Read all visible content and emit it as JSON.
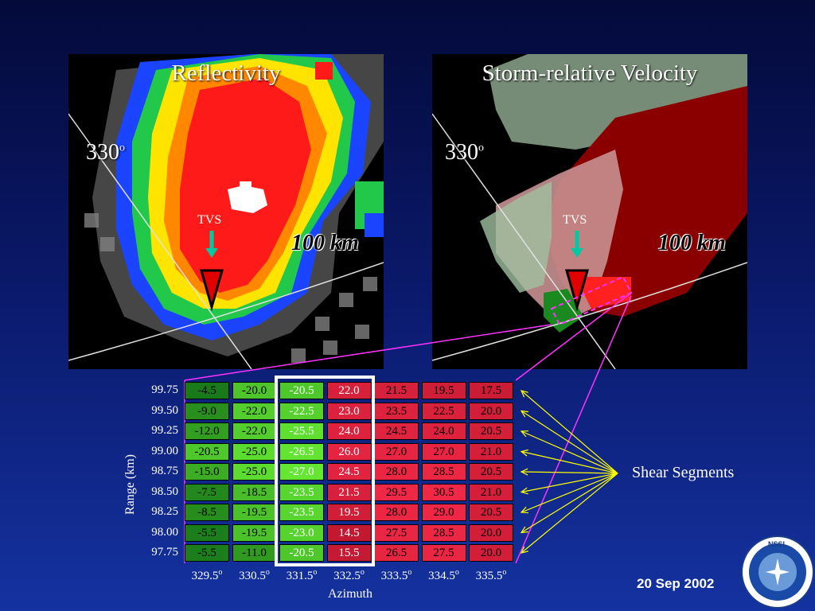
{
  "panels": {
    "reflectivity": {
      "title": "Reflectivity",
      "azimuth_label": "330",
      "azimuth_sup": "o",
      "tvs_label": "TVS",
      "range_label": "100 km"
    },
    "velocity": {
      "title": "Storm-relative Velocity",
      "azimuth_label": "330",
      "azimuth_sup": "o",
      "tvs_label": "TVS",
      "range_label": "100 km"
    }
  },
  "table": {
    "row_labels": [
      "99.75",
      "99.50",
      "99.25",
      "99.00",
      "98.75",
      "98.50",
      "98.25",
      "98.00",
      "97.75"
    ],
    "col_labels": [
      "329.5",
      "330.5",
      "331.5",
      "332.5",
      "333.5",
      "334.5",
      "335.5"
    ],
    "col_sup": "o",
    "values": [
      [
        "-4.5",
        "-20.0",
        "-20.5",
        "22.0",
        "21.5",
        "19.5",
        "17.5"
      ],
      [
        "-9.0",
        "-22.0",
        "-22.5",
        "23.0",
        "23.5",
        "22.5",
        "20.0"
      ],
      [
        "-12.0",
        "-22.0",
        "-25.5",
        "24.0",
        "24.5",
        "24.0",
        "20.5"
      ],
      [
        "-20.5",
        "-25.0",
        "-26.5",
        "26.0",
        "27.0",
        "27.0",
        "21.0"
      ],
      [
        "-15.0",
        "-25.0",
        "-27.0",
        "24.5",
        "28.0",
        "28.5",
        "20.5"
      ],
      [
        "-7.5",
        "-18.5",
        "-23.5",
        "21.5",
        "29.5",
        "30.5",
        "21.0"
      ],
      [
        "-8.5",
        "-19.5",
        "-23.5",
        "19.5",
        "28.0",
        "29.0",
        "20.5"
      ],
      [
        "-5.5",
        "-19.5",
        "-23.0",
        "14.5",
        "27.5",
        "28.5",
        "20.0"
      ],
      [
        "-5.5",
        "-11.0",
        "-20.5",
        "15.5",
        "26.5",
        "27.5",
        "20.0"
      ]
    ],
    "y_axis_title": "Range (km)",
    "x_axis_title": "Azimuth"
  },
  "annotations": {
    "shear_segments": "Shear Segments",
    "date": "20 Sep 2002"
  },
  "logo": {
    "name": "nssl-logo",
    "text": "NSSL NATIONAL SEVERE STORMS LABORATORY"
  },
  "colors": {
    "positive_strong": "#c8102e",
    "negative_strong": "#0a8a1a",
    "connector_lines": "#ff33ff",
    "shear_arrows": "#ffff00"
  }
}
